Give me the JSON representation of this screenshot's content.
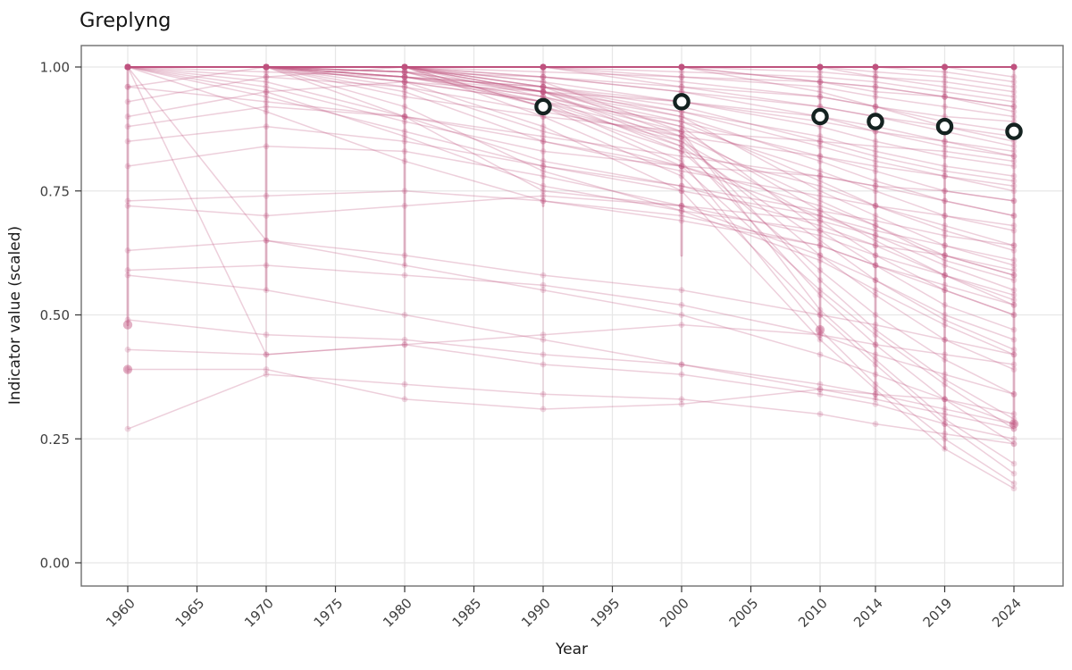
{
  "title": "Greplyng",
  "chart_data": {
    "type": "line",
    "title": "Greplyng",
    "xlabel": "Year",
    "ylabel": "Indicator value (scaled)",
    "legend": false,
    "grid": true,
    "xlim": [
      1956.6,
      2027.5
    ],
    "ylim": [
      -0.047,
      1.043
    ],
    "x_ticks": [
      {
        "label": "1960",
        "value": 1960
      },
      {
        "label": "1965",
        "value": 1965
      },
      {
        "label": "1970",
        "value": 1970
      },
      {
        "label": "1975",
        "value": 1975
      },
      {
        "label": "1980",
        "value": 1980
      },
      {
        "label": "1985",
        "value": 1985
      },
      {
        "label": "1990",
        "value": 1990
      },
      {
        "label": "1995",
        "value": 1995
      },
      {
        "label": "2000",
        "value": 2000
      },
      {
        "label": "2005",
        "value": 2005
      },
      {
        "label": "2010",
        "value": 2010
      },
      {
        "label": "2014",
        "value": 2014
      },
      {
        "label": "2019",
        "value": 2019
      },
      {
        "label": "2024",
        "value": 2024
      }
    ],
    "y_ticks": [
      {
        "label": "0.00",
        "value": 0.0
      },
      {
        "label": "0.25",
        "value": 0.25
      },
      {
        "label": "0.50",
        "value": 0.5
      },
      {
        "label": "0.75",
        "value": 0.75
      },
      {
        "label": "1.00",
        "value": 1.0
      }
    ],
    "observation_years": [
      1960,
      1970,
      1980,
      1990,
      2000,
      2010,
      2014,
      2019,
      2024
    ],
    "series": [
      [
        1,
        1,
        1,
        1,
        1,
        1,
        1,
        1,
        1
      ],
      [
        1,
        1,
        1,
        1,
        1,
        1,
        1,
        1,
        1
      ],
      [
        1,
        1,
        1,
        1,
        1,
        1,
        1,
        1,
        1
      ],
      [
        1,
        1,
        1,
        1,
        1,
        1,
        1,
        1,
        1
      ],
      [
        1,
        1,
        1,
        1,
        1,
        1,
        1,
        1,
        1
      ],
      [
        1,
        1,
        1,
        1,
        1,
        1,
        1,
        1,
        1
      ],
      [
        1,
        1,
        1,
        1,
        1,
        1,
        1,
        1,
        1
      ],
      [
        1,
        1,
        1,
        1,
        1,
        1,
        1,
        1,
        1
      ],
      [
        1,
        1,
        1,
        1,
        1,
        1,
        1,
        1,
        1
      ],
      [
        1,
        1,
        1,
        1,
        1,
        1,
        1,
        1,
        1
      ],
      [
        1,
        1,
        1,
        1,
        1,
        1,
        1,
        1,
        1
      ],
      [
        1,
        1,
        1,
        1,
        1,
        1,
        1,
        1,
        1
      ],
      [
        1,
        1,
        1,
        1,
        1,
        1,
        1,
        1,
        1
      ],
      [
        1,
        1,
        1,
        1,
        1,
        1,
        1,
        1,
        1
      ],
      [
        1,
        1,
        1,
        1,
        1,
        1,
        1,
        1,
        1
      ],
      [
        1,
        1,
        1,
        1,
        1,
        1,
        1,
        1,
        1
      ],
      [
        1,
        1,
        1,
        1,
        1,
        1,
        1,
        1,
        1
      ],
      [
        1,
        1,
        1,
        1,
        1,
        1,
        1,
        1,
        1
      ],
      [
        1,
        1,
        1,
        1,
        1,
        1,
        1,
        1,
        1
      ],
      [
        1,
        1,
        1,
        1,
        1,
        1,
        1,
        1,
        1
      ],
      [
        1,
        1,
        1,
        1,
        1,
        1,
        1,
        1,
        0.98
      ],
      [
        1,
        1,
        1,
        1,
        1,
        1,
        1,
        0.99,
        0.97
      ],
      [
        1,
        1,
        1,
        1,
        1,
        1,
        0.99,
        0.98,
        0.96
      ],
      [
        1,
        1,
        1,
        1,
        1,
        0.99,
        0.98,
        0.97,
        0.95
      ],
      [
        1,
        1,
        1,
        1,
        1,
        1,
        0.98,
        0.96,
        0.94
      ],
      [
        1,
        1,
        1,
        1,
        0.99,
        0.98,
        0.97,
        0.95,
        0.93
      ],
      [
        1,
        1,
        1,
        0.99,
        0.98,
        0.97,
        0.95,
        0.94,
        0.92
      ],
      [
        1,
        1,
        1,
        1,
        1,
        0.97,
        0.96,
        0.94,
        0.91
      ],
      [
        1,
        1,
        1,
        1,
        0.98,
        0.96,
        0.94,
        0.92,
        0.9
      ],
      [
        1,
        1,
        0.99,
        0.98,
        0.96,
        0.94,
        0.92,
        0.9,
        0.89
      ],
      [
        1,
        1,
        1,
        1,
        0.97,
        0.94,
        0.92,
        0.89,
        0.87
      ],
      [
        1,
        1,
        1,
        0.98,
        0.95,
        0.92,
        0.9,
        0.88,
        0.86
      ],
      [
        1,
        1,
        1,
        1,
        0.96,
        0.92,
        0.9,
        0.87,
        0.84
      ],
      [
        1,
        1,
        1,
        1,
        1,
        0.95,
        0.92,
        0.88,
        0.85
      ],
      [
        1,
        1,
        0.98,
        0.96,
        0.93,
        0.89,
        0.87,
        0.84,
        0.82
      ],
      [
        1,
        1,
        1,
        0.97,
        0.93,
        0.88,
        0.85,
        0.82,
        0.8
      ],
      [
        1,
        1,
        0.99,
        0.95,
        0.91,
        0.86,
        0.83,
        0.8,
        0.78
      ],
      [
        1,
        1,
        1,
        0.96,
        0.91,
        0.84,
        0.81,
        0.78,
        0.75
      ],
      [
        1,
        1,
        0.97,
        0.93,
        0.89,
        0.82,
        0.79,
        0.75,
        0.73
      ],
      [
        1,
        1,
        1,
        0.95,
        0.9,
        0.81,
        0.77,
        0.73,
        0.7
      ],
      [
        1,
        0.99,
        0.98,
        0.94,
        0.88,
        0.79,
        0.75,
        0.7,
        0.67
      ],
      [
        1,
        1,
        0.98,
        0.95,
        0.89,
        0.77,
        0.72,
        0.67,
        0.63
      ],
      [
        1,
        1,
        1,
        0.96,
        0.9,
        0.75,
        0.7,
        0.64,
        0.6
      ],
      [
        1,
        1,
        0.97,
        0.93,
        0.86,
        0.73,
        0.68,
        0.61,
        0.57
      ],
      [
        1,
        1,
        1,
        0.94,
        0.87,
        0.71,
        0.65,
        0.58,
        0.53
      ],
      [
        1,
        1,
        0.99,
        0.92,
        0.85,
        0.69,
        0.62,
        0.55,
        0.5
      ],
      [
        1,
        1,
        1,
        0.95,
        0.88,
        0.67,
        0.6,
        0.52,
        0.47
      ],
      [
        1,
        1,
        0.98,
        0.96,
        0.92,
        0.85,
        0.82,
        0.79,
        0.77
      ],
      [
        1,
        1,
        1,
        0.98,
        0.95,
        0.9,
        0.87,
        0.85,
        0.83
      ],
      [
        1,
        1,
        0.99,
        0.93,
        0.84,
        0.65,
        0.57,
        0.49,
        0.43
      ],
      [
        1,
        1,
        1,
        0.95,
        0.85,
        0.62,
        0.54,
        0.45,
        0.39
      ],
      [
        1,
        1,
        0.98,
        0.94,
        0.83,
        0.59,
        0.5,
        0.41,
        0.34
      ],
      [
        1,
        1,
        1,
        0.96,
        0.86,
        0.57,
        0.47,
        0.37,
        0.29
      ],
      [
        1,
        1,
        0.99,
        0.95,
        0.84,
        0.54,
        0.44,
        0.33,
        0.24
      ],
      [
        1,
        1,
        1,
        0.97,
        0.87,
        0.51,
        0.41,
        0.29,
        0.2
      ],
      [
        1,
        1,
        0.98,
        0.93,
        0.81,
        0.47,
        0.36,
        0.25,
        0.16
      ],
      [
        1,
        1,
        1,
        0.9,
        0.78,
        0.5,
        0.4,
        0.28,
        0.18
      ],
      [
        1,
        1,
        0.97,
        0.88,
        0.75,
        0.45,
        0.35,
        0.23,
        0.15
      ],
      [
        1,
        1,
        1,
        0.92,
        0.8,
        0.55,
        0.46,
        0.36,
        0.27
      ],
      [
        1,
        1,
        0.95,
        0.85,
        0.79,
        0.74,
        0.72,
        0.7,
        0.68
      ],
      [
        1,
        0.97,
        0.9,
        0.81,
        0.76,
        0.71,
        0.69,
        0.66,
        0.64
      ],
      [
        1,
        0.95,
        0.86,
        0.76,
        0.71,
        0.67,
        0.64,
        0.62,
        0.59
      ],
      [
        1,
        0.91,
        0.81,
        0.73,
        0.69,
        0.64,
        0.6,
        0.56,
        0.52
      ],
      [
        1,
        1,
        0.92,
        0.79,
        0.71,
        0.61,
        0.55,
        0.48,
        0.42
      ],
      [
        1,
        0.96,
        0.89,
        0.83,
        0.8,
        0.78,
        0.76,
        0.75,
        0.73
      ],
      [
        1,
        1,
        0.94,
        0.9,
        0.87,
        0.85,
        0.84,
        0.83,
        0.81
      ],
      [
        1,
        0.98,
        0.96,
        0.91,
        0.86,
        0.82,
        0.8,
        0.78,
        0.76
      ],
      [
        1,
        1,
        1,
        0.92,
        0.83,
        0.76,
        0.72,
        0.68,
        0.64
      ],
      [
        1,
        1,
        0.96,
        0.87,
        0.8,
        0.7,
        0.66,
        0.6,
        0.55
      ],
      [
        1,
        1,
        0.9,
        0.75,
        0.72,
        0.69,
        0.66,
        0.62,
        0.58
      ],
      [
        1,
        0.94,
        0.87,
        0.8,
        0.75,
        0.7,
        0.67,
        0.64,
        0.61
      ],
      [
        0.96,
        1,
        1,
        1,
        1,
        1,
        1,
        1,
        1
      ],
      [
        0.93,
        0.98,
        1,
        1,
        1,
        0.97,
        0.96,
        0.94,
        0.92
      ],
      [
        0.9,
        0.95,
        0.97,
        0.95,
        0.93,
        0.9,
        0.88,
        0.85,
        0.82
      ],
      [
        0.88,
        0.92,
        0.9,
        0.85,
        0.8,
        0.72,
        0.68,
        0.62,
        0.58
      ],
      [
        0.85,
        0.88,
        0.85,
        0.8,
        0.76,
        0.68,
        0.64,
        0.58,
        0.52
      ],
      [
        0.8,
        0.84,
        0.83,
        0.78,
        0.72,
        0.62,
        0.57,
        0.5,
        0.45
      ],
      [
        0.73,
        0.74,
        0.75,
        0.73,
        0.7,
        0.64,
        0.6,
        0.55,
        0.5
      ],
      [
        0.72,
        0.7,
        0.72,
        0.74,
        0.72,
        0.66,
        0.62,
        0.58,
        0.54
      ],
      [
        0.63,
        0.65,
        0.6,
        0.55,
        0.5,
        0.42,
        0.38,
        0.33,
        0.28
      ],
      [
        0.59,
        0.6,
        0.58,
        0.56,
        0.52,
        0.46,
        0.42,
        0.38,
        0.34
      ],
      [
        0.58,
        0.55,
        0.5,
        0.45,
        0.4,
        0.35,
        0.33,
        0.3,
        0.27
      ],
      [
        0.49,
        0.46,
        0.45,
        0.42,
        0.4,
        0.36,
        0.34,
        0.31,
        0.28
      ],
      [
        0.43,
        0.42,
        0.44,
        0.4,
        0.38,
        0.34,
        0.32,
        0.28,
        0.25
      ],
      [
        0.39,
        0.39,
        0.33,
        0.31,
        0.32,
        0.35,
        0.34,
        0.33,
        0.3
      ],
      [
        0.27,
        0.38,
        0.36,
        0.34,
        0.33,
        0.3,
        0.28,
        0.26,
        0.24
      ],
      [
        1,
        0.65,
        0.62,
        0.58,
        0.55,
        0.5,
        0.48,
        0.45,
        0.42
      ],
      [
        1,
        0.42,
        0.44,
        0.46,
        0.48,
        0.46,
        0.44,
        0.42,
        0.4
      ],
      [
        0.96,
        0.93,
        0.9,
        0.86,
        0.82,
        0.78,
        0.76,
        0.73,
        0.7
      ]
    ],
    "year_strips": [
      {
        "year": 1960,
        "top": 1.0,
        "solid_to": 0.48,
        "faint_to": 0.27
      },
      {
        "year": 1970,
        "top": 1.0,
        "solid_to": 0.55,
        "faint_to": 0.38
      },
      {
        "year": 1980,
        "top": 1.0,
        "solid_to": 0.6,
        "faint_to": 0.33
      },
      {
        "year": 1990,
        "top": 1.0,
        "solid_to": 0.72,
        "faint_to": 0.31
      },
      {
        "year": 2000,
        "top": 1.0,
        "solid_to": 0.62,
        "faint_to": 0.32
      },
      {
        "year": 2010,
        "top": 1.0,
        "solid_to": 0.45,
        "faint_to": 0.34
      },
      {
        "year": 2014,
        "top": 1.0,
        "solid_to": 0.33,
        "faint_to": 0.33
      },
      {
        "year": 2019,
        "top": 1.0,
        "solid_to": 0.23,
        "faint_to": 0.23
      },
      {
        "year": 2024,
        "top": 1.0,
        "solid_to": 0.28,
        "faint_to": 0.15
      }
    ],
    "open_circle_markers": {
      "years": [
        1990,
        2000,
        2010,
        2014,
        2019,
        2024
      ],
      "values": [
        0.92,
        0.93,
        0.9,
        0.89,
        0.88,
        0.87
      ]
    },
    "accent_points": [
      {
        "year": 1960,
        "value": 0.39
      },
      {
        "year": 1960,
        "value": 0.48
      },
      {
        "year": 2010,
        "value": 0.47
      },
      {
        "year": 2024,
        "value": 0.28
      }
    ],
    "colors": {
      "line": "#c0537f",
      "summary_ring": "#142220",
      "summary_fill": "#ffffff",
      "grid": "#e7e7e7",
      "panel_border": "#6e6e6e",
      "tick_mark": "#333333",
      "axis_text": "#3f3f3f",
      "title_text": "#141414"
    },
    "line_alpha": 0.28,
    "point_alpha": 0.22
  }
}
